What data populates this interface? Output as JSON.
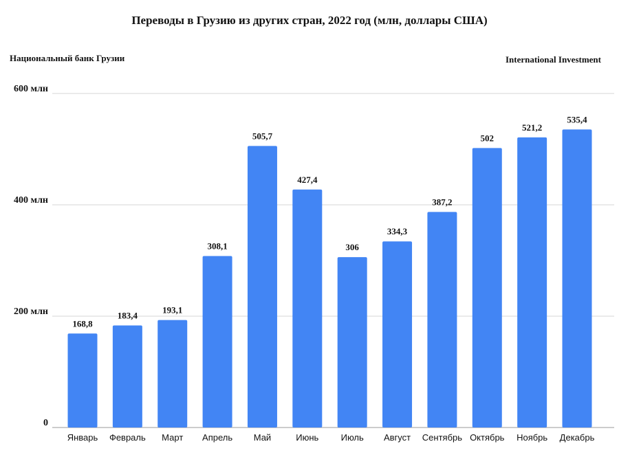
{
  "header": {
    "title": "Переводы в Грузию из других стран, 2022 год (млн, доллары США)",
    "source_left": "Национальный банк Грузии",
    "source_right": "International Investment"
  },
  "colors": {
    "bar": "#4285f4",
    "grid": "#d6d6d6",
    "text": "#111111"
  },
  "chart_data": {
    "type": "bar",
    "title": "Переводы в Грузию из других стран, 2022 год (млн, доллары США)",
    "categories": [
      "Январь",
      "Февраль",
      "Март",
      "Апрель",
      "Май",
      "Июнь",
      "Июль",
      "Август",
      "Сентябрь",
      "Октябрь",
      "Ноябрь",
      "Декабрь"
    ],
    "values": [
      168.8,
      183.4,
      193.1,
      308.1,
      505.7,
      427.4,
      306,
      334.3,
      387.2,
      502,
      521.2,
      535.4
    ],
    "value_labels": [
      "168,8",
      "183,4",
      "193,1",
      "308,1",
      "505,7",
      "427,4",
      "306",
      "334,3",
      "387,2",
      "502",
      "521,2",
      "535,4"
    ],
    "yticks": [
      {
        "value": 0,
        "label": "0"
      },
      {
        "value": 200,
        "label": "200 млн"
      },
      {
        "value": 400,
        "label": "400 млн"
      },
      {
        "value": 600,
        "label": "600 млн"
      }
    ],
    "ylim": [
      0,
      600
    ],
    "grid": true,
    "legend": "none"
  }
}
